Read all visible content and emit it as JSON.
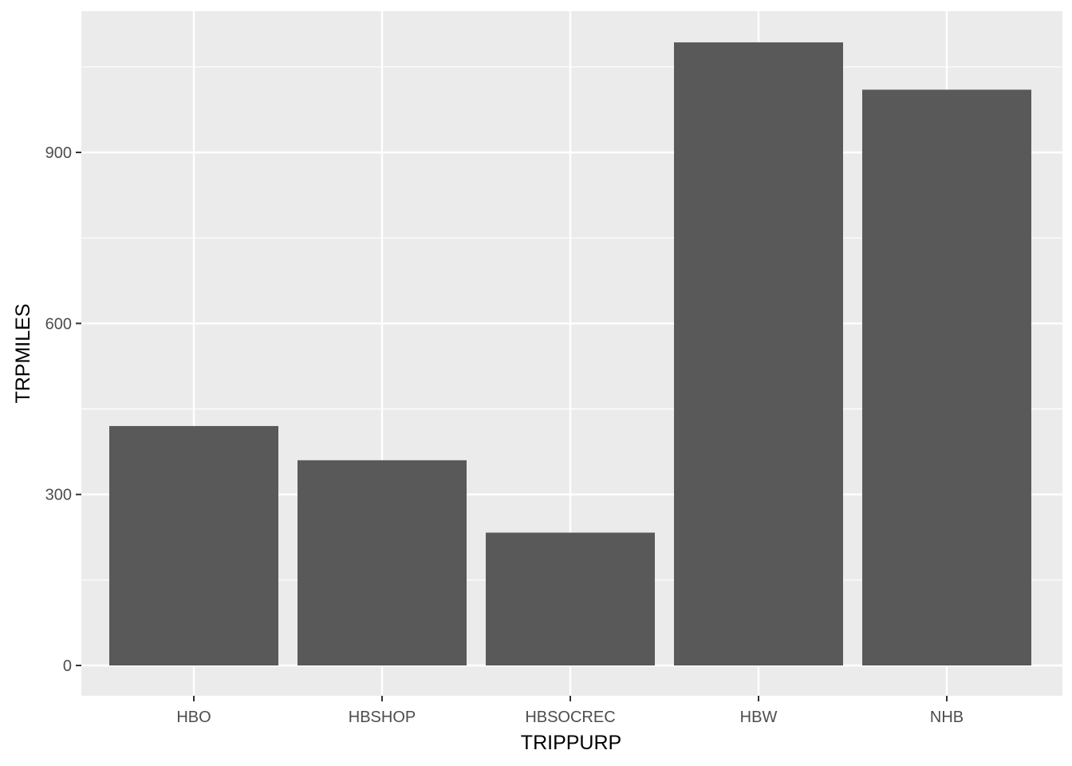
{
  "chart_data": {
    "type": "bar",
    "title": "",
    "xlabel": "TRIPPURP",
    "ylabel": "TRPMILES",
    "categories": [
      "HBO",
      "HBSHOP",
      "HBSOCREC",
      "HBW",
      "NHB"
    ],
    "values": [
      420,
      360,
      233,
      1093,
      1010
    ],
    "ylim": [
      -55,
      1150
    ],
    "yticks": [
      0,
      300,
      600,
      900
    ],
    "yticklabels": [
      "0",
      "300",
      "600",
      "900"
    ],
    "grid": true,
    "legend": "none"
  },
  "colors": {
    "panel_background": "#ebebeb",
    "grid_major": "#ffffff",
    "bar_fill": "#595959",
    "tick_text": "#4d4d4d",
    "tick_mark": "#333333"
  }
}
